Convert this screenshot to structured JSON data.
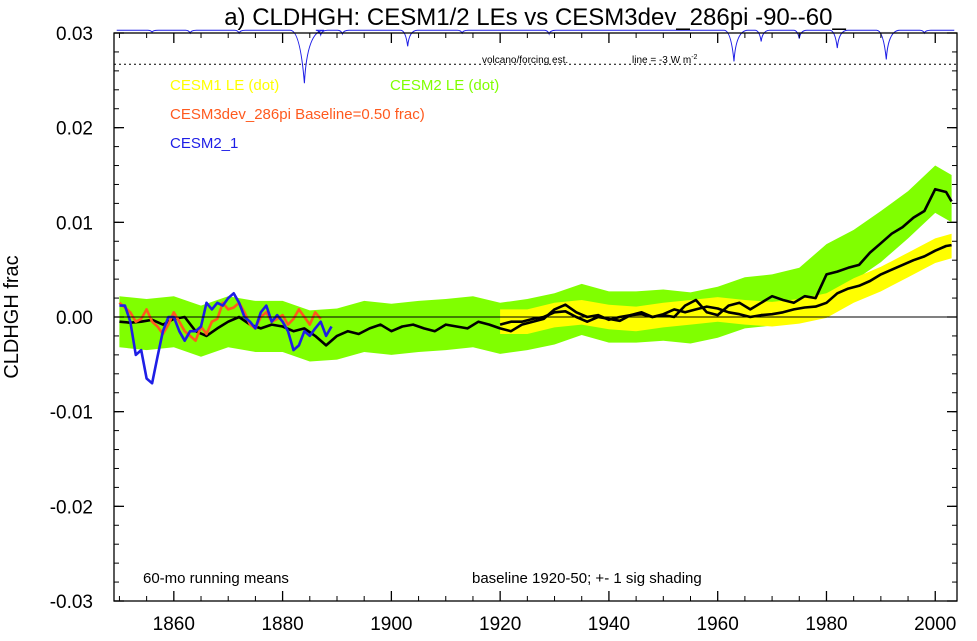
{
  "chart_data": {
    "type": "line",
    "title": "a) CLDHGH: CESM1/2 LEs vs CESM3dev_286pi -90--60_",
    "ylabel": "CLDHGH frac",
    "xlabel": "",
    "xlim": [
      1849,
      2004
    ],
    "ylim": [
      -0.03,
      0.03
    ],
    "xticks": [
      1860,
      1880,
      1900,
      1920,
      1940,
      1960,
      1980,
      2000
    ],
    "xtick_labels": [
      "1860",
      "1880",
      "1900",
      "1920",
      "1940",
      "1960",
      "1980",
      "2000"
    ],
    "yticks": [
      -0.03,
      -0.02,
      -0.01,
      0.0,
      0.01,
      0.02,
      0.03
    ],
    "ytick_labels": [
      "-0.03",
      "-0.02",
      "-0.01",
      "0.00",
      "0.01",
      "0.02",
      "0.03"
    ],
    "grid": false,
    "zero_line": true,
    "legend": [
      {
        "label": "CESM1 LE (dot)",
        "color": "#ffff00"
      },
      {
        "label": "CESM2 LE (dot)",
        "color": "#80ff00"
      },
      {
        "label": "CESM3dev_286pi Baseline=0.50 frac)",
        "color": "#ff5a1e"
      },
      {
        "label": "CESM2_1",
        "color": "#1e1ee6"
      }
    ],
    "legend_placement": "top-left",
    "annotations": {
      "volcano_label": "volcano/forcing est.",
      "volcano_scale": "line = -3 W m",
      "volcano_scale_sup": "-2",
      "bottom_left": "60-mo running means",
      "bottom_right": "baseline 1920-50; +- 1 sig shading"
    },
    "volcano_reference_y": 0.0267,
    "volcano_baseline_y": 0.0303,
    "volcano_dips": [
      {
        "x": 1856,
        "depth": 0.0002
      },
      {
        "x": 1863,
        "depth": 0.0003
      },
      {
        "x": 1872,
        "depth": 0.0003
      },
      {
        "x": 1884,
        "depth": 0.0056
      },
      {
        "x": 1887,
        "depth": 0.0005
      },
      {
        "x": 1891,
        "depth": 0.0004
      },
      {
        "x": 1903,
        "depth": 0.0017
      },
      {
        "x": 1913,
        "depth": 0.0003
      },
      {
        "x": 1929,
        "depth": 0.0004
      },
      {
        "x": 1963,
        "depth": 0.0033
      },
      {
        "x": 1968,
        "depth": 0.0012
      },
      {
        "x": 1975,
        "depth": 0.0009
      },
      {
        "x": 1982,
        "depth": 0.0019
      },
      {
        "x": 1991,
        "depth": 0.0031
      },
      {
        "x": 1998,
        "depth": 0.0003
      }
    ],
    "series": [
      {
        "name": "CESM2 LE",
        "kind": "band",
        "color": "#80ff00",
        "x": [
          1850,
          1855,
          1860,
          1865,
          1870,
          1875,
          1880,
          1885,
          1890,
          1895,
          1900,
          1905,
          1910,
          1915,
          1920,
          1925,
          1930,
          1935,
          1940,
          1945,
          1950,
          1955,
          1960,
          1965,
          1970,
          1975,
          1980,
          1985,
          1990,
          1995,
          2000,
          2003
        ],
        "y": [
          -0.0005,
          -0.0008,
          -0.0005,
          -0.0015,
          -0.0005,
          -0.001,
          -0.001,
          -0.002,
          -0.0018,
          -0.001,
          -0.0013,
          -0.001,
          -0.0008,
          -0.0005,
          -0.0012,
          -0.0008,
          -0.0002,
          0.0008,
          0.0,
          0.0,
          0.0002,
          -0.0001,
          0.0005,
          0.0015,
          0.0018,
          0.0025,
          0.005,
          0.0065,
          0.0085,
          0.0108,
          0.0135,
          0.0125
        ],
        "sigma": [
          0.0027,
          0.0027,
          0.0027,
          0.0027,
          0.0027,
          0.0027,
          0.0027,
          0.0027,
          0.0027,
          0.0027,
          0.0027,
          0.0027,
          0.0027,
          0.0027,
          0.0027,
          0.0027,
          0.0027,
          0.0027,
          0.0027,
          0.0027,
          0.0027,
          0.0027,
          0.0027,
          0.0027,
          0.0027,
          0.0027,
          0.0027,
          0.0027,
          0.0027,
          0.0025,
          0.0025,
          0.0025
        ]
      },
      {
        "name": "CESM1 LE",
        "kind": "band",
        "color": "#ffff00",
        "x": [
          1920,
          1925,
          1930,
          1935,
          1940,
          1945,
          1950,
          1955,
          1960,
          1965,
          1970,
          1975,
          1980,
          1985,
          1990,
          1995,
          2000,
          2003
        ],
        "y": [
          -0.0005,
          -0.0005,
          0.0002,
          0.0005,
          0.0,
          -0.0002,
          0.0002,
          0.0005,
          0.0008,
          0.0005,
          0.0003,
          0.0006,
          0.0012,
          0.0028,
          0.004,
          0.0055,
          0.007,
          0.0075
        ],
        "sigma": [
          0.0013,
          0.0013,
          0.0013,
          0.0013,
          0.0013,
          0.0013,
          0.0013,
          0.0013,
          0.0013,
          0.0013,
          0.0013,
          0.0013,
          0.0013,
          0.0013,
          0.0013,
          0.0013,
          0.0013,
          0.0013
        ]
      },
      {
        "name": "CESM2 LE",
        "kind": "mean",
        "color": "#000000",
        "x": [
          1850,
          1852,
          1854,
          1856,
          1858,
          1860,
          1862,
          1864,
          1866,
          1868,
          1870,
          1872,
          1874,
          1876,
          1878,
          1880,
          1882,
          1884,
          1886,
          1888,
          1890,
          1892,
          1894,
          1896,
          1898,
          1900,
          1902,
          1904,
          1906,
          1908,
          1910,
          1912,
          1914,
          1916,
          1918,
          1920,
          1922,
          1924,
          1926,
          1928,
          1930,
          1932,
          1934,
          1936,
          1938,
          1940,
          1942,
          1944,
          1946,
          1948,
          1950,
          1952,
          1954,
          1956,
          1958,
          1960,
          1962,
          1964,
          1966,
          1968,
          1970,
          1972,
          1974,
          1976,
          1978,
          1980,
          1982,
          1984,
          1986,
          1988,
          1990,
          1992,
          1994,
          1996,
          1998,
          2000,
          2002,
          2003
        ],
        "y": [
          -0.0005,
          -0.0006,
          -0.0005,
          -0.0003,
          -0.0008,
          -0.0002,
          0.0,
          -0.0015,
          -0.002,
          -0.0012,
          -0.0005,
          0.0,
          -0.0008,
          -0.0012,
          -0.0008,
          -0.001,
          -0.0015,
          -0.0012,
          -0.002,
          -0.003,
          -0.002,
          -0.0015,
          -0.0018,
          -0.0012,
          -0.0008,
          -0.0015,
          -0.001,
          -0.0008,
          -0.0012,
          -0.0015,
          -0.0008,
          -0.001,
          -0.0012,
          -0.0005,
          -0.0008,
          -0.0012,
          -0.0015,
          -0.0008,
          -0.0005,
          -0.0002,
          0.0008,
          0.0013,
          0.0005,
          0.0,
          0.0002,
          -0.0003,
          0.0,
          0.0002,
          0.0005,
          0.0,
          0.0002,
          0.0,
          0.0012,
          0.0018,
          0.0005,
          0.0002,
          0.0012,
          0.0015,
          0.0008,
          0.0015,
          0.0022,
          0.0018,
          0.0015,
          0.0022,
          0.002,
          0.0045,
          0.0048,
          0.0052,
          0.0055,
          0.0068,
          0.0078,
          0.0088,
          0.0095,
          0.0105,
          0.0112,
          0.0135,
          0.0132,
          0.0122
        ]
      },
      {
        "name": "CESM1 LE",
        "kind": "mean",
        "color": "#000000",
        "x": [
          1920,
          1922,
          1924,
          1926,
          1928,
          1930,
          1932,
          1934,
          1936,
          1938,
          1940,
          1942,
          1944,
          1946,
          1948,
          1950,
          1952,
          1954,
          1956,
          1958,
          1960,
          1962,
          1964,
          1966,
          1968,
          1970,
          1972,
          1974,
          1976,
          1978,
          1980,
          1982,
          1984,
          1986,
          1988,
          1990,
          1992,
          1994,
          1996,
          1998,
          2000,
          2002,
          2003
        ],
        "y": [
          -0.0008,
          -0.0005,
          -0.0005,
          -0.0002,
          0.0,
          0.0005,
          0.0006,
          0.0,
          -0.0005,
          0.0,
          -0.0002,
          -0.0004,
          0.0002,
          0.0003,
          0.0,
          0.0003,
          0.0008,
          0.0005,
          0.0008,
          0.0011,
          0.0009,
          0.0005,
          0.0003,
          0.0,
          0.0002,
          0.0003,
          0.0005,
          0.0008,
          0.001,
          0.0011,
          0.0015,
          0.0025,
          0.003,
          0.0033,
          0.0038,
          0.0045,
          0.005,
          0.0055,
          0.006,
          0.0064,
          0.007,
          0.0075,
          0.0076
        ]
      },
      {
        "name": "CESM3dev_286pi",
        "kind": "line",
        "color": "#ff5a1e",
        "x": [
          1850,
          1851,
          1852,
          1853,
          1854,
          1855,
          1856,
          1857,
          1858,
          1859,
          1860,
          1861,
          1862,
          1863,
          1864,
          1865,
          1866,
          1867,
          1868,
          1869,
          1870,
          1871,
          1872,
          1873,
          1874,
          1875,
          1876,
          1877,
          1878,
          1879,
          1880,
          1881,
          1882,
          1883,
          1884,
          1885,
          1886,
          1887
        ],
        "y": [
          0.0015,
          0.001,
          0.0005,
          -0.0005,
          -0.0002,
          0.0008,
          -0.0005,
          -0.001,
          -0.0018,
          -0.0008,
          0.0005,
          -0.0005,
          -0.0015,
          -0.002,
          -0.0025,
          -0.001,
          -0.0018,
          -0.0005,
          -0.0002,
          0.0015,
          0.0008,
          0.001,
          0.0015,
          0.0005,
          -0.0008,
          -0.0012,
          0.0,
          0.0005,
          -0.0005,
          -0.0002,
          0.0002,
          -0.0008,
          -0.0002,
          0.0008,
          0.0,
          -0.0008,
          0.0005,
          -0.0002
        ]
      },
      {
        "name": "CESM2_1",
        "kind": "line",
        "color": "#1e1ee6",
        "x": [
          1850,
          1851,
          1852,
          1853,
          1854,
          1855,
          1856,
          1857,
          1858,
          1859,
          1860,
          1861,
          1862,
          1863,
          1864,
          1865,
          1866,
          1867,
          1868,
          1869,
          1870,
          1871,
          1872,
          1873,
          1874,
          1875,
          1876,
          1877,
          1878,
          1879,
          1880,
          1881,
          1882,
          1883,
          1884,
          1885,
          1886,
          1887,
          1888,
          1889
        ],
        "y": [
          0.0012,
          0.0012,
          -0.0005,
          -0.004,
          -0.0035,
          -0.0065,
          -0.007,
          -0.0042,
          -0.0015,
          0.0,
          0.0,
          -0.0015,
          -0.0025,
          -0.0015,
          -0.0015,
          -0.001,
          0.0015,
          0.0008,
          0.0015,
          0.0012,
          0.002,
          0.0025,
          0.0015,
          0.0,
          -0.0005,
          -0.0012,
          0.0005,
          0.0012,
          -0.0005,
          0.0002,
          -0.0005,
          -0.0015,
          -0.0035,
          -0.003,
          -0.0015,
          -0.002,
          -0.0012,
          -0.0005,
          -0.002,
          -0.001
        ]
      }
    ]
  }
}
